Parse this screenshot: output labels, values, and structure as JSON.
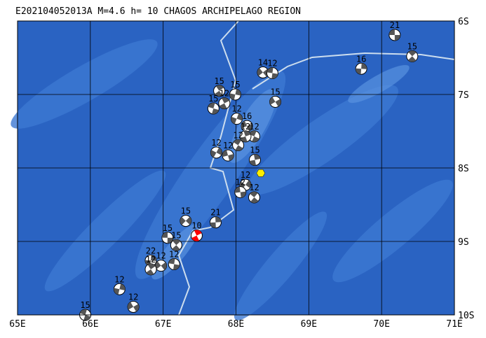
{
  "map": {
    "title": "E202104052013A  M=4.6  h= 10 CHAGOS ARCHIPELAGO REGION",
    "xlim": [
      65,
      71
    ],
    "ylim": [
      -10,
      -6
    ],
    "xticks": [
      {
        "value": 65,
        "label": "65E"
      },
      {
        "value": 66,
        "label": "66E"
      },
      {
        "value": 67,
        "label": "67E"
      },
      {
        "value": 68,
        "label": "68E"
      },
      {
        "value": 69,
        "label": "69E"
      },
      {
        "value": 70,
        "label": "70E"
      },
      {
        "value": 71,
        "label": "71E"
      }
    ],
    "yticks": [
      {
        "value": -6,
        "label": "6S"
      },
      {
        "value": -7,
        "label": "7S"
      },
      {
        "value": -8,
        "label": "8S"
      },
      {
        "value": -9,
        "label": "9S"
      },
      {
        "value": -10,
        "label": "10S"
      }
    ],
    "grid": true,
    "epicenter": {
      "lon": 68.34,
      "lat": -8.07,
      "color": "#ffee00"
    },
    "main_color": "#ff0000",
    "events": [
      {
        "lon": 70.18,
        "lat": -6.19,
        "depth": 21
      },
      {
        "lon": 70.42,
        "lat": -6.48,
        "depth": 15
      },
      {
        "lon": 69.72,
        "lat": -6.65,
        "depth": 16
      },
      {
        "lon": 68.37,
        "lat": -6.7,
        "depth": 14
      },
      {
        "lon": 68.5,
        "lat": -6.71,
        "depth": 12
      },
      {
        "lon": 67.77,
        "lat": -6.95,
        "depth": 15
      },
      {
        "lon": 67.99,
        "lat": -7.0,
        "depth": 15
      },
      {
        "lon": 68.54,
        "lat": -7.1,
        "depth": 15
      },
      {
        "lon": 67.69,
        "lat": -7.19,
        "depth": 15
      },
      {
        "lon": 67.84,
        "lat": -7.12,
        "depth": 12
      },
      {
        "lon": 68.01,
        "lat": -7.33,
        "depth": 12
      },
      {
        "lon": 68.15,
        "lat": -7.43,
        "depth": 16
      },
      {
        "lon": 68.25,
        "lat": -7.57,
        "depth": 12
      },
      {
        "lon": 68.13,
        "lat": -7.57,
        "depth": 12
      },
      {
        "lon": 67.73,
        "lat": -7.79,
        "depth": 12
      },
      {
        "lon": 67.89,
        "lat": -7.83,
        "depth": 12
      },
      {
        "lon": 68.03,
        "lat": -7.69,
        "depth": 12
      },
      {
        "lon": 68.26,
        "lat": -7.89,
        "depth": 15
      },
      {
        "lon": 68.13,
        "lat": -8.23,
        "depth": 12
      },
      {
        "lon": 68.06,
        "lat": -8.33,
        "depth": 12
      },
      {
        "lon": 68.25,
        "lat": -8.4,
        "depth": 12
      },
      {
        "lon": 67.72,
        "lat": -8.74,
        "depth": 21
      },
      {
        "lon": 67.31,
        "lat": -8.72,
        "depth": 15
      },
      {
        "lon": 67.06,
        "lat": -8.95,
        "depth": 15
      },
      {
        "lon": 67.18,
        "lat": -9.05,
        "depth": 15
      },
      {
        "lon": 66.83,
        "lat": -9.26,
        "depth": 22
      },
      {
        "lon": 66.97,
        "lat": -9.33,
        "depth": 12
      },
      {
        "lon": 67.15,
        "lat": -9.31,
        "depth": 12
      },
      {
        "lon": 66.83,
        "lat": -9.38,
        "depth": 12
      },
      {
        "lon": 66.4,
        "lat": -9.65,
        "depth": 12
      },
      {
        "lon": 66.59,
        "lat": -9.89,
        "depth": 12
      },
      {
        "lon": 65.93,
        "lat": -10.0,
        "depth": 15
      },
      {
        "lon": 67.46,
        "lat": -8.92,
        "depth": 10,
        "main": true
      }
    ]
  }
}
